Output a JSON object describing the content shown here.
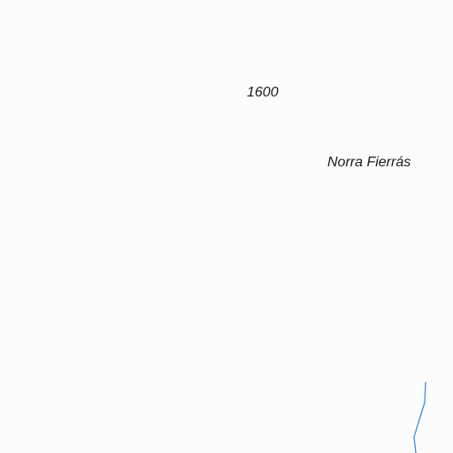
{
  "map": {
    "labels": {
      "elevation": "1600",
      "place_name": "Norra Fierrás"
    },
    "colors": {
      "background": "#fcfcfc",
      "stream": "#3b8fd6",
      "label_text": "#1a1a1a"
    }
  }
}
